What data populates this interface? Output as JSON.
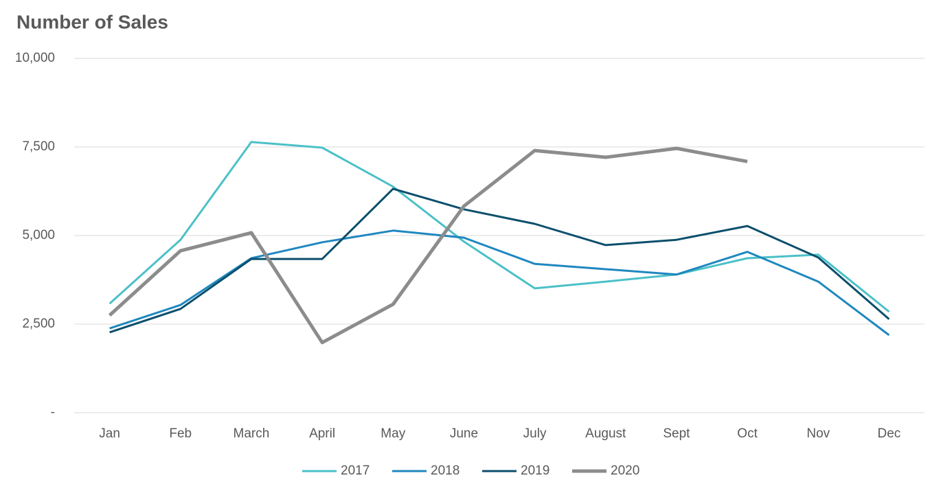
{
  "chart_data": {
    "type": "line",
    "title": "Number of Sales",
    "categories": [
      "Jan",
      "Feb",
      "March",
      "April",
      "May",
      "June",
      "July",
      "August",
      "Sept",
      "Oct",
      "Nov",
      "Dec"
    ],
    "series": [
      {
        "name": "2017",
        "color": "#4bc0c8",
        "line_width": 3,
        "values": [
          3080,
          4880,
          7640,
          7480,
          6380,
          4830,
          3510,
          3700,
          3900,
          4360,
          4460,
          2850
        ]
      },
      {
        "name": "2018",
        "color": "#1f87bf",
        "line_width": 3,
        "values": [
          2380,
          3040,
          4360,
          4810,
          5140,
          4940,
          4200,
          4050,
          3900,
          4540,
          3700,
          2190
        ]
      },
      {
        "name": "2019",
        "color": "#0b4f6c",
        "line_width": 3,
        "values": [
          2270,
          2930,
          4340,
          4340,
          6320,
          5740,
          5330,
          4730,
          4880,
          5270,
          4380,
          2640
        ]
      },
      {
        "name": "2020",
        "color": "#8c8c8c",
        "line_width": 5,
        "values": [
          2750,
          4570,
          5080,
          1980,
          3060,
          5830,
          7400,
          7210,
          7460,
          7090,
          null,
          null
        ]
      }
    ],
    "ylim": [
      0,
      10000
    ],
    "yticks": [
      {
        "value": 0,
        "label": "-"
      },
      {
        "value": 2500,
        "label": "2,500"
      },
      {
        "value": 5000,
        "label": "5,000"
      },
      {
        "value": 7500,
        "label": "7,500"
      },
      {
        "value": 10000,
        "label": "10,000"
      }
    ],
    "grid": true,
    "legend": "bottom"
  }
}
